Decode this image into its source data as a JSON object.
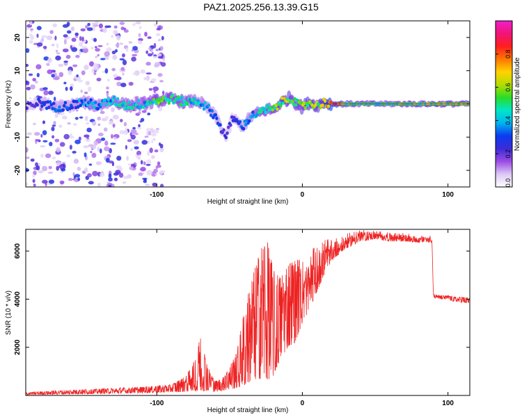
{
  "chart_data": [
    {
      "type": "heatmap",
      "title": "PAZ1.2025.256.13.39.G15",
      "xlabel": "Height of straight line (km)",
      "ylabel": "Frequency (Hz)",
      "xlim": [
        -190,
        115
      ],
      "ylim": [
        -25,
        25
      ],
      "x_ticks": [
        -100,
        0,
        100
      ],
      "y_ticks": [
        -20,
        -10,
        0,
        10,
        20
      ],
      "colorbar": {
        "label": "Normalized spectral amplitude",
        "range": [
          0.0,
          1.0
        ],
        "ticks": [
          "0.0",
          "0.2",
          "0.4",
          "0.6",
          "0.8"
        ],
        "colors": [
          "#ffffff",
          "#dcc8f5",
          "#9b4be6",
          "#3c2bd8",
          "#0a3cf0",
          "#00b4f0",
          "#00e6c8",
          "#28dc28",
          "#b4dc00",
          "#ffd200",
          "#ff7800",
          "#ff1e1e",
          "#f01478",
          "#f01ecc"
        ]
      },
      "ridge": {
        "x": [
          -190,
          -180,
          -170,
          -160,
          -150,
          -140,
          -130,
          -120,
          -110,
          -100,
          -90,
          -80,
          -72,
          -66,
          -62,
          -58,
          -55,
          -52,
          -48,
          -44,
          -40,
          -36,
          -32,
          -28,
          -24,
          -20,
          -16,
          -12,
          -8,
          -4,
          0,
          5,
          10,
          15,
          20,
          30,
          40,
          60,
          80,
          100,
          115
        ],
        "y": [
          -1.0,
          0.5,
          -1.0,
          -0.5,
          0.5,
          -0.5,
          1.0,
          -0.5,
          0.0,
          1.0,
          1.5,
          0.5,
          1.0,
          -1.0,
          -2.5,
          -5.0,
          -8.0,
          -10.0,
          -4.0,
          -6.0,
          -6.5,
          -4.0,
          -3.0,
          -2.5,
          -1.5,
          -2.0,
          0.0,
          1.0,
          2.0,
          0.0,
          -1.0,
          0.5,
          -0.5,
          0.5,
          0.0,
          0.0,
          0.0,
          0.0,
          0.0,
          0.0,
          0.0
        ],
        "amplitude": [
          0.2,
          0.25,
          0.3,
          0.3,
          0.35,
          0.35,
          0.4,
          0.45,
          0.4,
          0.5,
          0.5,
          0.45,
          0.4,
          0.35,
          0.3,
          0.3,
          0.25,
          0.2,
          0.25,
          0.3,
          0.3,
          0.35,
          0.4,
          0.45,
          0.5,
          0.5,
          0.55,
          0.6,
          0.55,
          0.5,
          0.55,
          0.6,
          0.55,
          0.6,
          0.9,
          0.55,
          0.5,
          0.5,
          0.55,
          0.6,
          0.55
        ]
      },
      "scatter_noise": {
        "x_range": [
          -190,
          -95
        ],
        "y_range": [
          -25,
          25
        ],
        "amplitude_range": [
          0.05,
          0.3
        ]
      }
    },
    {
      "type": "line",
      "title": "",
      "xlabel": "Height of straight line (km)",
      "ylabel": "SNR (10 * v/v)",
      "xlim": [
        -190,
        115
      ],
      "ylim": [
        0,
        6900
      ],
      "x_ticks": [
        -100,
        0,
        100
      ],
      "y_ticks": [
        2000,
        4000,
        6000
      ],
      "series": [
        {
          "color": "#ee2222",
          "envelope_x": [
            -190,
            -170,
            -150,
            -130,
            -110,
            -90,
            -80,
            -75,
            -70,
            -65,
            -60,
            -55,
            -50,
            -45,
            -40,
            -35,
            -30,
            -25,
            -20,
            -15,
            -10,
            -5,
            0,
            5,
            10,
            15,
            20,
            30,
            40,
            50,
            60,
            70,
            80,
            89,
            90,
            91,
            95,
            100,
            105,
            110,
            115
          ],
          "envelope_low": [
            20,
            40,
            60,
            80,
            100,
            130,
            150,
            200,
            150,
            200,
            150,
            200,
            250,
            300,
            400,
            600,
            700,
            600,
            800,
            1500,
            2000,
            2200,
            3000,
            3600,
            4300,
            5000,
            5600,
            6100,
            6400,
            6500,
            6400,
            6400,
            6350,
            6350,
            4100,
            4050,
            4000,
            3950,
            3900,
            3850,
            3800
          ],
          "envelope_high": [
            120,
            200,
            250,
            300,
            350,
            450,
            800,
            1300,
            2450,
            1200,
            600,
            700,
            1200,
            1800,
            3500,
            4800,
            5800,
            6700,
            5200,
            4900,
            5500,
            5600,
            5700,
            6200,
            6400,
            6500,
            6600,
            6750,
            6900,
            6850,
            6800,
            6750,
            6650,
            6650,
            4250,
            4200,
            4150,
            4150,
            4100,
            4100,
            4050
          ]
        }
      ]
    }
  ]
}
